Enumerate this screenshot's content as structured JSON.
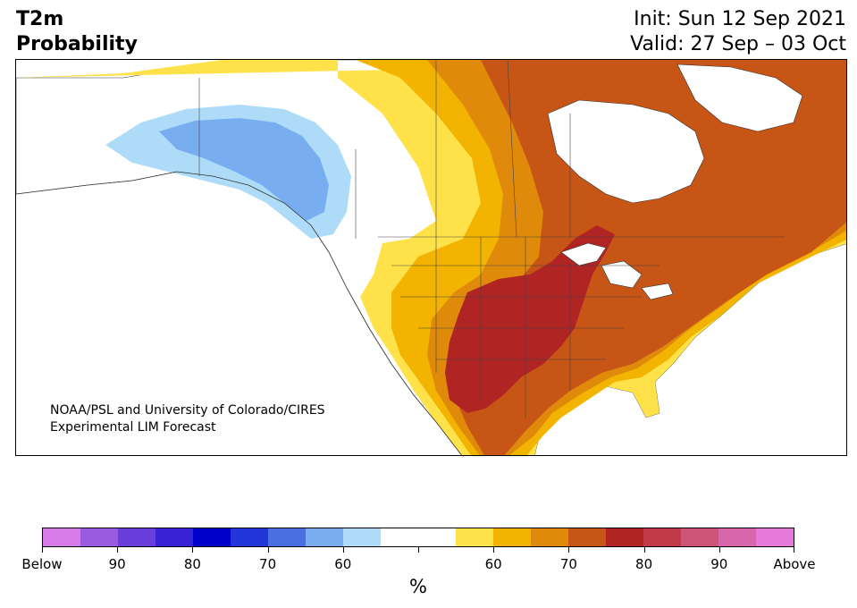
{
  "title": {
    "line1": "T2m",
    "line2": "Probability"
  },
  "valid": {
    "init": "Init: Sun 12 Sep 2021",
    "valid": "Valid: 27 Sep – 03 Oct"
  },
  "credit": {
    "line1": "NOAA/PSL and University of Colorado/CIRES",
    "line2": "Experimental LIM Forecast"
  },
  "colorbar": {
    "colors": [
      "#d67be8",
      "#9b5be0",
      "#6a3edb",
      "#3a23d6",
      "#0000cc",
      "#2336d9",
      "#4a6fe0",
      "#78aef0",
      "#aedcf8",
      "#ffffff",
      "#ffffff",
      "#ffe24a",
      "#f2b400",
      "#e08a0c",
      "#c75516",
      "#b02424",
      "#c23a4a",
      "#cc5577",
      "#d866aa",
      "#e87bd9"
    ],
    "ticks": [
      "Below",
      "90",
      "80",
      "70",
      "60",
      "",
      "60",
      "70",
      "80",
      "90",
      "Above"
    ],
    "unit": "%"
  }
}
